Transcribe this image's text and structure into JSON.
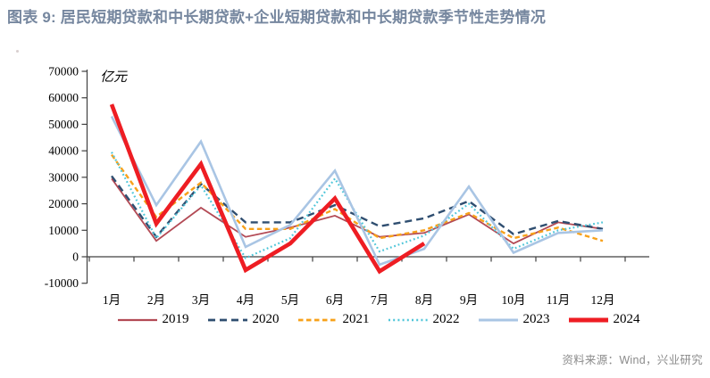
{
  "source_note": "资料来源：Wind，兴业研究",
  "colors": {
    "title_text": "#76879F",
    "axis_line": "#404040",
    "source_text": "#8b8b8b"
  },
  "chart_data": {
    "type": "line",
    "title": "图表 9: 居民短期贷款和中长期贷款+企业短期贷款和中长期贷款季节性走势情况",
    "ylabel": "亿元",
    "xlabel": "",
    "grid": false,
    "legend_position": "bottom",
    "ylim": [
      -10000,
      70000
    ],
    "yticks": [
      70000,
      60000,
      50000,
      40000,
      30000,
      20000,
      10000,
      0,
      -10000
    ],
    "categories": [
      "1月",
      "2月",
      "3月",
      "4月",
      "5月",
      "6月",
      "7月",
      "8月",
      "9月",
      "10月",
      "11月",
      "12月"
    ],
    "series": [
      {
        "name": "2019",
        "color": "#B34A55",
        "line_style": "solid",
        "dash": "",
        "thickness": 1.8,
        "values": [
          29500,
          6000,
          18500,
          7500,
          11000,
          15500,
          7500,
          9000,
          16000,
          5000,
          13000,
          10500
        ]
      },
      {
        "name": "2020",
        "color": "#2F4E70",
        "line_style": "dashed",
        "dash": "8 5",
        "thickness": 2.4,
        "values": [
          30500,
          7500,
          27500,
          13000,
          13000,
          19500,
          11500,
          14500,
          21000,
          8500,
          13500,
          10500
        ]
      },
      {
        "name": "2021",
        "color": "#F7A11A",
        "line_style": "dashed",
        "dash": "5.5 3.5",
        "thickness": 2.4,
        "values": [
          38500,
          15000,
          28000,
          10500,
          10500,
          18000,
          7000,
          10000,
          16500,
          7000,
          11000,
          6000
        ]
      },
      {
        "name": "2022",
        "color": "#4FC6D9",
        "line_style": "dotted",
        "dash": "1.8 2.8",
        "thickness": 2.2,
        "values": [
          39500,
          7000,
          27000,
          -500,
          7000,
          29500,
          2000,
          8000,
          20000,
          3000,
          10000,
          13000
        ]
      },
      {
        "name": "2023",
        "color": "#A9C5E4",
        "line_style": "solid",
        "dash": "",
        "thickness": 2.6,
        "values": [
          53000,
          19500,
          43500,
          3700,
          12000,
          32500,
          -3000,
          3000,
          26500,
          1500,
          9000,
          10000
        ]
      },
      {
        "name": "2024",
        "color": "#EE1D23",
        "line_style": "solid",
        "dash": "",
        "thickness": 4.6,
        "values": [
          57500,
          12500,
          35000,
          -5000,
          5000,
          22000,
          -5500,
          5000,
          null,
          null,
          null,
          null
        ]
      }
    ]
  }
}
